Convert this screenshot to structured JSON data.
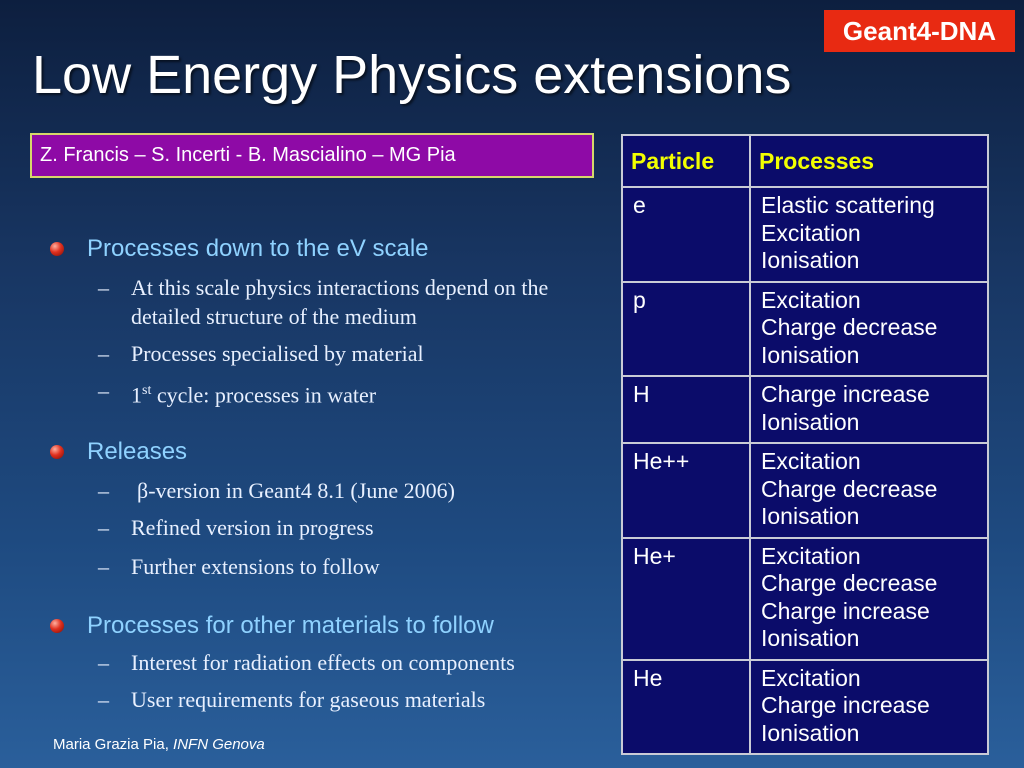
{
  "slide": {
    "badge": "Geant4-DNA",
    "title": "Low Energy Physics extensions",
    "authors": "Z. Francis – S. Incerti - B. Mascialino – MG Pia"
  },
  "sections": [
    {
      "heading": "Processes down to the eV scale",
      "items": [
        "At this scale physics interactions depend on the detailed structure of the medium",
        "Processes specialised by material",
        {
          "sup_prefix": "1",
          "sup": "st",
          "rest": " cycle: processes in water"
        }
      ]
    },
    {
      "heading": "Releases",
      "items": [
        "β-version in Geant4 8.1 (June 2006)",
        "Refined version in progress",
        "Further extensions to follow"
      ]
    },
    {
      "heading": "Processes for other materials to follow",
      "items": [
        "Interest for radiation effects on components",
        "User requirements for gaseous materials"
      ]
    }
  ],
  "table": {
    "headers": [
      "Particle",
      "Processes"
    ],
    "rows": [
      {
        "particle": "e",
        "processes": [
          "Elastic scattering",
          "Excitation",
          "Ionisation"
        ]
      },
      {
        "particle": "p",
        "processes": [
          "Excitation",
          "Charge decrease",
          "Ionisation"
        ]
      },
      {
        "particle": "H",
        "processes": [
          "Charge increase",
          "Ionisation"
        ]
      },
      {
        "particle": "He++",
        "processes": [
          "Excitation",
          "Charge decrease",
          "Ionisation"
        ]
      },
      {
        "particle": "He+",
        "processes": [
          "Excitation",
          "Charge decrease",
          "Charge increase",
          "Ionisation"
        ]
      },
      {
        "particle": "He",
        "processes": [
          "Excitation",
          "Charge increase",
          "Ionisation"
        ]
      }
    ]
  },
  "footer": {
    "author": "Maria Grazia Pia, ",
    "institution": "INFN Genova"
  },
  "colors": {
    "badge": "#e82a12",
    "author_box": "#8e0aa6",
    "heading_text": "#8fd2ff",
    "table_background": "#0b0c6a",
    "table_header_text": "#f2ff00"
  }
}
